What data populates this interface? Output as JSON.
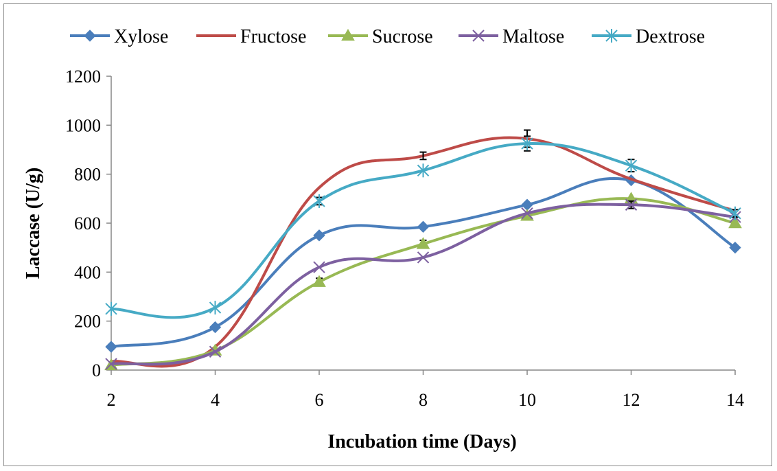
{
  "chart_data": {
    "type": "line",
    "title": "",
    "xlabel": "Incubation time (Days)",
    "ylabel": "Laccase (U/g)",
    "x": [
      2,
      4,
      6,
      8,
      10,
      12,
      14
    ],
    "x_ticks": [
      "2",
      "4",
      "6",
      "8",
      "10",
      "12",
      "14"
    ],
    "ylim": [
      0,
      1200
    ],
    "y_ticks": [
      "0",
      "200",
      "400",
      "600",
      "800",
      "1000",
      "1200"
    ],
    "grid": false,
    "smoothed": true,
    "legend_position": "top",
    "series": [
      {
        "name": "Xylose",
        "color": "#4a7ebb",
        "marker": "diamond",
        "values": [
          95,
          175,
          550,
          585,
          675,
          775,
          500
        ],
        "errors": [
          0,
          0,
          0,
          0,
          0,
          0,
          0
        ]
      },
      {
        "name": "Fructose",
        "color": "#be4b48",
        "marker": "none",
        "values": [
          35,
          95,
          745,
          875,
          945,
          780,
          650
        ],
        "errors": [
          0,
          0,
          0,
          15,
          35,
          0,
          0
        ]
      },
      {
        "name": "Sucrose",
        "color": "#98b954",
        "marker": "triangle",
        "values": [
          20,
          80,
          360,
          515,
          630,
          700,
          600
        ],
        "errors": [
          0,
          0,
          15,
          15,
          0,
          0,
          0
        ]
      },
      {
        "name": "Maltose",
        "color": "#7d60a0",
        "marker": "x",
        "values": [
          25,
          75,
          420,
          460,
          640,
          675,
          625
        ],
        "errors": [
          0,
          0,
          0,
          0,
          0,
          15,
          0
        ]
      },
      {
        "name": "Dextrose",
        "color": "#46aac5",
        "marker": "star",
        "values": [
          250,
          255,
          690,
          815,
          925,
          835,
          640
        ],
        "errors": [
          0,
          0,
          15,
          0,
          30,
          25,
          15
        ]
      }
    ]
  }
}
